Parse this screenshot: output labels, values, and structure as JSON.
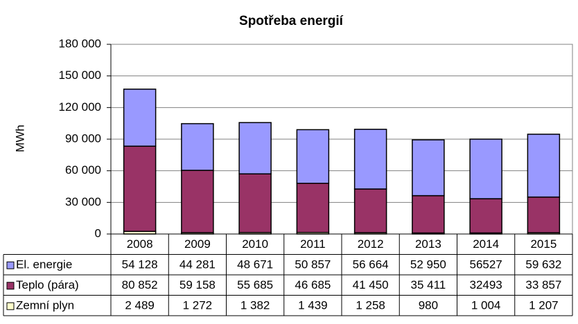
{
  "chart_data": {
    "type": "stacked-bar",
    "title": "Spotřeba energií",
    "y_label": "MWh",
    "categories": [
      "2008",
      "2009",
      "2010",
      "2011",
      "2012",
      "2013",
      "2014",
      "2015"
    ],
    "series": [
      {
        "name": "El. energie",
        "color": "#9999ff",
        "values": [
          54128,
          44281,
          48671,
          50857,
          56664,
          52950,
          56527,
          59632
        ],
        "value_labels": [
          "54 128",
          "44 281",
          "48 671",
          "50 857",
          "56 664",
          "52 950",
          "56527",
          "59 632"
        ]
      },
      {
        "name": "Teplo (pára)",
        "color": "#993366",
        "values": [
          80852,
          59158,
          55685,
          46685,
          41450,
          35411,
          32493,
          33857
        ],
        "value_labels": [
          "80 852",
          "59 158",
          "55 685",
          "46 685",
          "41 450",
          "35 411",
          "32493",
          "33 857"
        ]
      },
      {
        "name": "Zemní plyn",
        "color": "#ffffcc",
        "values": [
          2489,
          1272,
          1382,
          1439,
          1258,
          980,
          1004,
          1207
        ],
        "value_labels": [
          "2 489",
          "1 272",
          "1 382",
          "1 439",
          "1 258",
          "980",
          "1 004",
          "1 207"
        ]
      }
    ],
    "ylim": [
      0,
      180000
    ],
    "yticks": [
      0,
      {
        "value": 30000,
        "label": "30 000"
      },
      {
        "value": 60000,
        "label": "60 000"
      },
      {
        "value": 90000,
        "label": "90 000"
      },
      {
        "value": 120000,
        "label": "120 000"
      },
      {
        "value": 150000,
        "label": "150 000"
      },
      {
        "value": 180000,
        "label": "180 000"
      }
    ],
    "grid": true
  }
}
